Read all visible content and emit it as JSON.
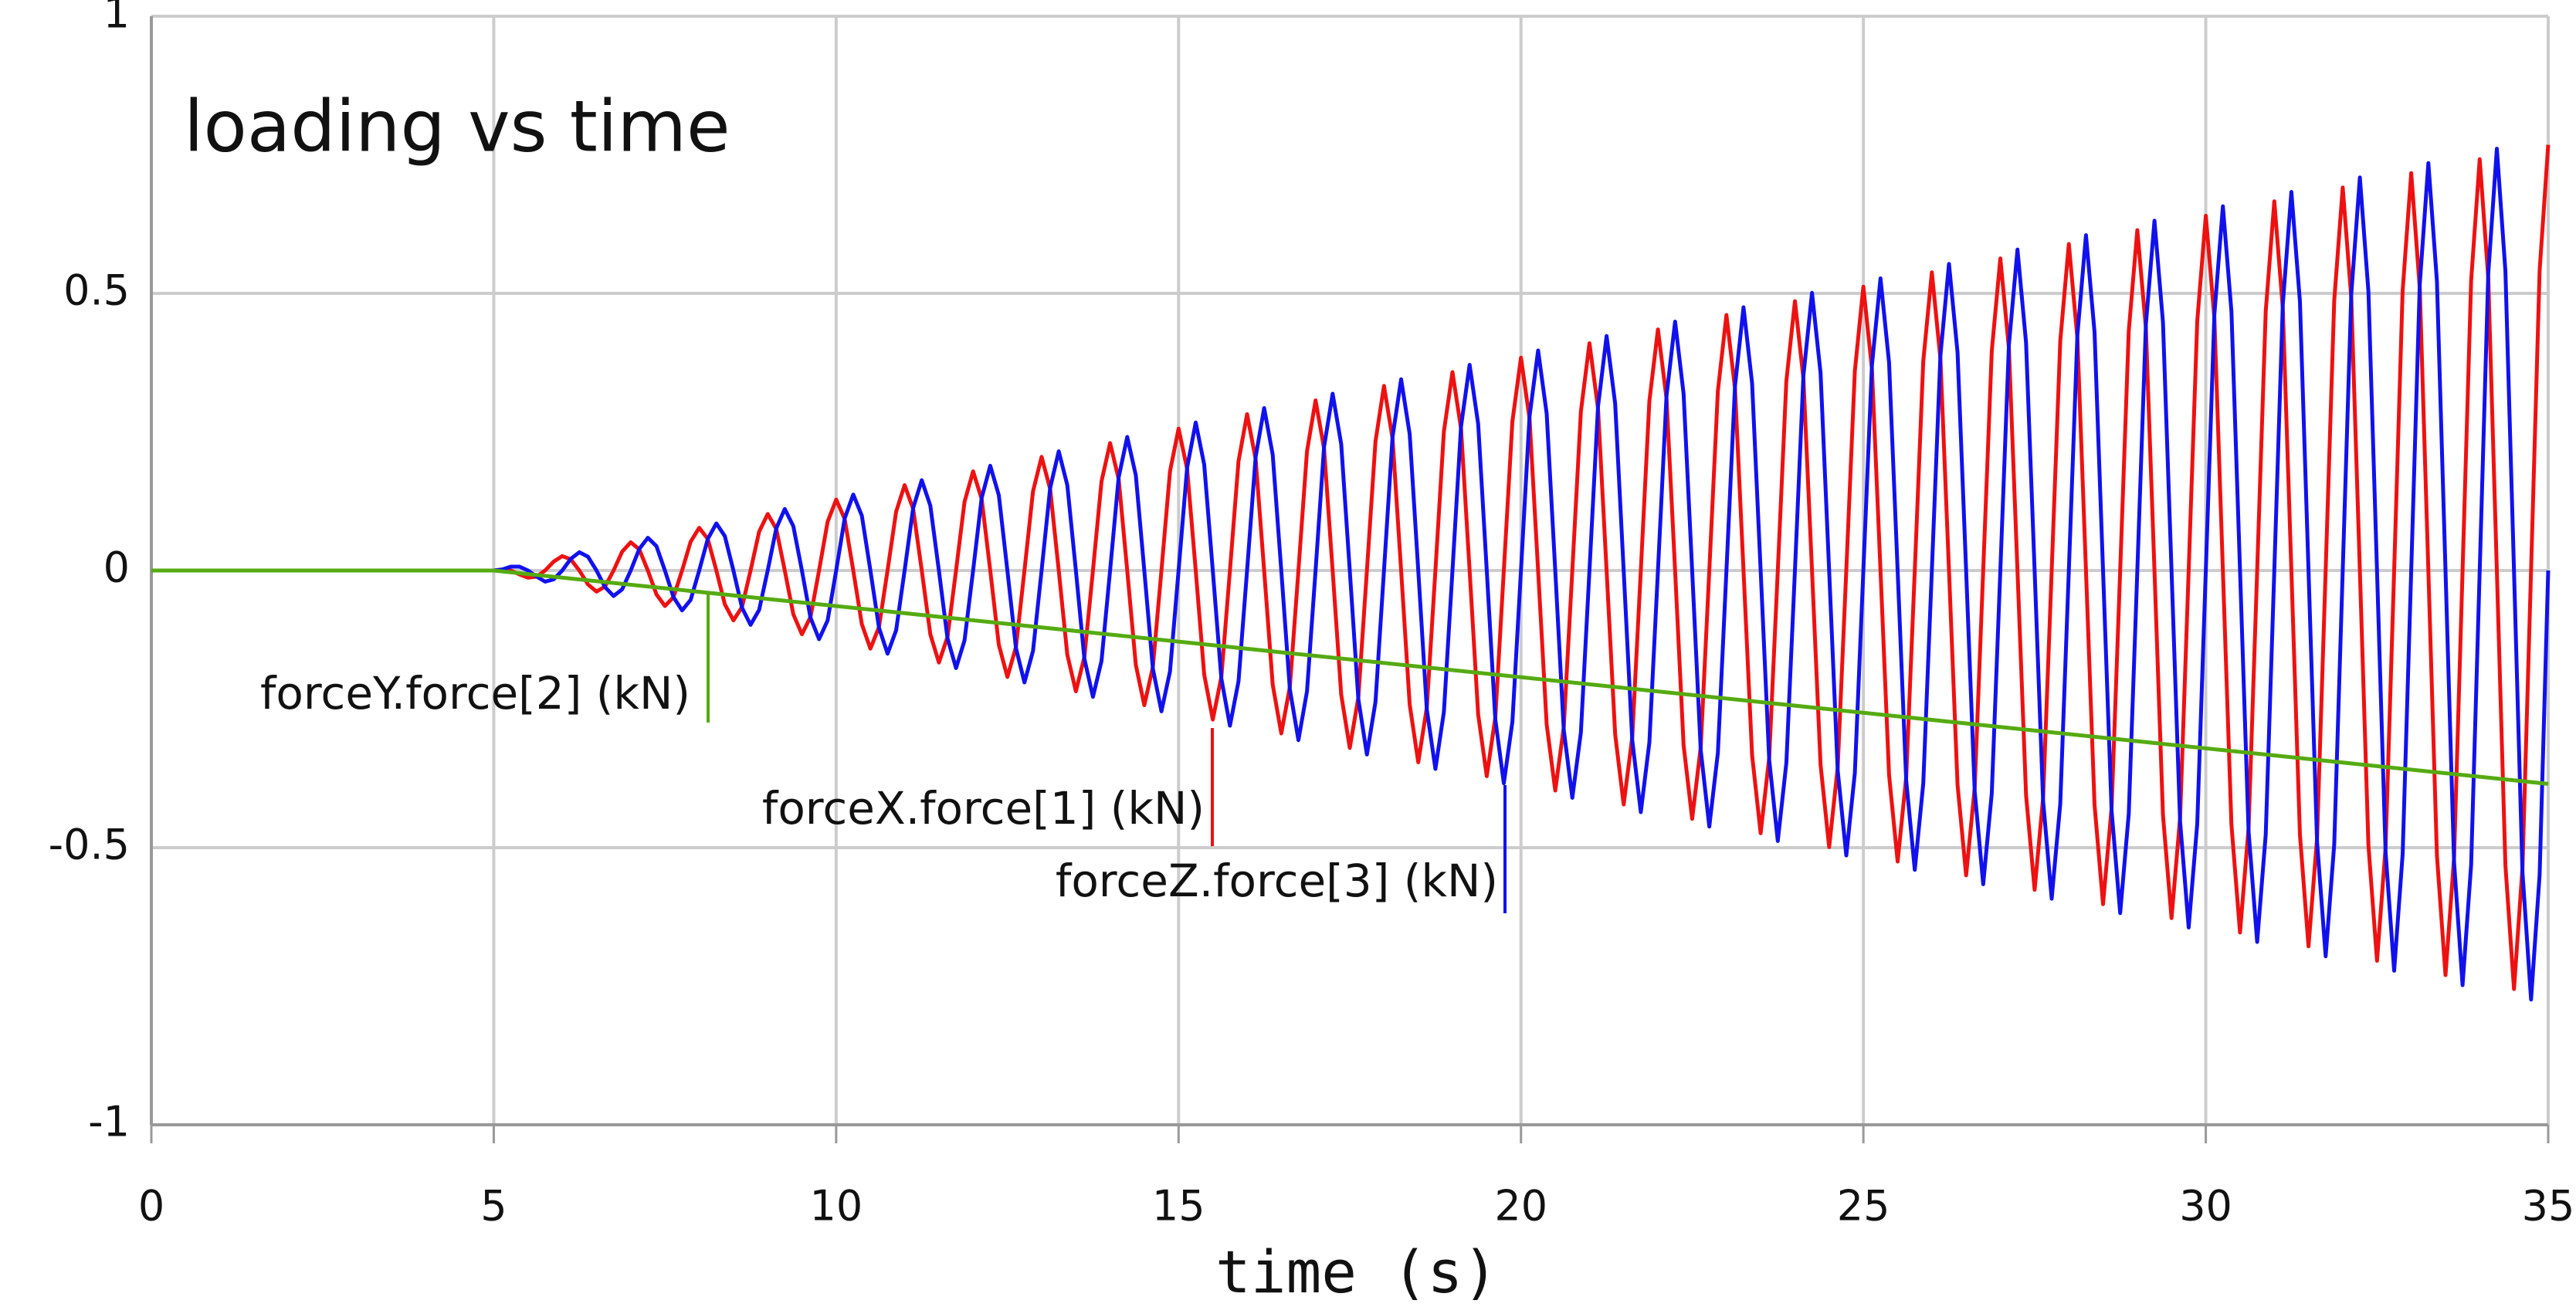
{
  "chart_data": {
    "type": "line",
    "title": "loading vs time",
    "xlabel": "time (s)",
    "xlim": [
      0,
      35
    ],
    "ylim": [
      -1,
      1
    ],
    "xticks": [
      0,
      5,
      10,
      15,
      20,
      25,
      30,
      35
    ],
    "yticks": [
      -1,
      -0.5,
      0,
      0.5,
      1
    ],
    "grid": true,
    "x": [
      0,
      5,
      5.125,
      5.25,
      5.375,
      5.5,
      5.625,
      5.75,
      5.875,
      6,
      6.125,
      6.25,
      6.375,
      6.5,
      6.625,
      6.75,
      6.875,
      7,
      7.125,
      7.25,
      7.375,
      7.5,
      7.625,
      7.75,
      7.875,
      8,
      8.125,
      8.25,
      8.375,
      8.5,
      8.625,
      8.75,
      8.875,
      9,
      9.125,
      9.25,
      9.375,
      9.5,
      9.625,
      9.75,
      9.875,
      10,
      10.125,
      10.25,
      10.375,
      10.5,
      10.625,
      10.75,
      10.875,
      11,
      11.125,
      11.25,
      11.375,
      11.5,
      11.625,
      11.75,
      11.875,
      12,
      12.125,
      12.25,
      12.375,
      12.5,
      12.625,
      12.75,
      12.875,
      13,
      13.125,
      13.25,
      13.375,
      13.5,
      13.625,
      13.75,
      13.875,
      14,
      14.125,
      14.25,
      14.375,
      14.5,
      14.625,
      14.75,
      14.875,
      15,
      15.125,
      15.25,
      15.375,
      15.5,
      15.625,
      15.75,
      15.875,
      16,
      16.125,
      16.25,
      16.375,
      16.5,
      16.625,
      16.75,
      16.875,
      17,
      17.125,
      17.25,
      17.375,
      17.5,
      17.625,
      17.75,
      17.875,
      18,
      18.125,
      18.25,
      18.375,
      18.5,
      18.625,
      18.75,
      18.875,
      19,
      19.125,
      19.25,
      19.375,
      19.5,
      19.625,
      19.75,
      19.875,
      20,
      20.125,
      20.25,
      20.375,
      20.5,
      20.625,
      20.75,
      20.875,
      21,
      21.125,
      21.25,
      21.375,
      21.5,
      21.625,
      21.75,
      21.875,
      22,
      22.125,
      22.25,
      22.375,
      22.5,
      22.625,
      22.75,
      22.875,
      23,
      23.125,
      23.25,
      23.375,
      23.5,
      23.625,
      23.75,
      23.875,
      24,
      24.125,
      24.25,
      24.375,
      24.5,
      24.625,
      24.75,
      24.875,
      25,
      25.125,
      25.25,
      25.375,
      25.5,
      25.625,
      25.75,
      25.875,
      26,
      26.125,
      26.25,
      26.375,
      26.5,
      26.625,
      26.75,
      26.875,
      27,
      27.125,
      27.25,
      27.375,
      27.5,
      27.625,
      27.75,
      27.875,
      28,
      28.125,
      28.25,
      28.375,
      28.5,
      28.625,
      28.75,
      28.875,
      29,
      29.125,
      29.25,
      29.375,
      29.5,
      29.625,
      29.75,
      29.875,
      30,
      30.125,
      30.25,
      30.375,
      30.5,
      30.625,
      30.75,
      30.875,
      31,
      31.125,
      31.25,
      31.375,
      31.5,
      31.625,
      31.75,
      31.875,
      32,
      32.125,
      32.25,
      32.375,
      32.5,
      32.625,
      32.75,
      32.875,
      33,
      33.125,
      33.25,
      33.375,
      33.5,
      33.625,
      33.75,
      33.875,
      34,
      34.125,
      34.25,
      34.375,
      34.5,
      34.625,
      34.75,
      34.875,
      35
    ],
    "series": [
      {
        "name": "forceX.force[1] (kN)",
        "color": "#ee1111",
        "values": [
          0,
          0,
          0.002,
          0,
          -0.007,
          -0.013,
          -0.011,
          0,
          0.016,
          0.026,
          0.02,
          0,
          -0.025,
          -0.038,
          -0.029,
          0,
          0.034,
          0.051,
          0.038,
          0,
          -0.043,
          -0.064,
          -0.048,
          0,
          0.052,
          0.077,
          0.057,
          0,
          -0.061,
          -0.09,
          -0.066,
          0,
          0.07,
          0.102,
          0.075,
          0,
          -0.079,
          -0.115,
          -0.084,
          0,
          0.088,
          0.128,
          0.093,
          0,
          -0.097,
          -0.141,
          -0.102,
          0,
          0.106,
          0.154,
          0.111,
          0,
          -0.115,
          -0.166,
          -0.12,
          0,
          0.124,
          0.179,
          0.129,
          0,
          -0.134,
          -0.192,
          -0.138,
          0,
          0.143,
          0.205,
          0.147,
          0,
          -0.152,
          -0.218,
          -0.156,
          0,
          0.161,
          0.23,
          0.165,
          0,
          -0.17,
          -0.243,
          -0.174,
          0,
          0.179,
          0.256,
          0.183,
          0,
          -0.188,
          -0.269,
          -0.192,
          0,
          0.197,
          0.282,
          0.201,
          0,
          -0.206,
          -0.294,
          -0.21,
          0,
          0.215,
          0.307,
          0.22,
          0,
          -0.224,
          -0.32,
          -0.229,
          0,
          0.233,
          0.333,
          0.238,
          0,
          -0.242,
          -0.346,
          -0.247,
          0,
          0.251,
          0.358,
          0.256,
          0,
          -0.26,
          -0.371,
          -0.265,
          0,
          0.269,
          0.384,
          0.274,
          0,
          -0.278,
          -0.397,
          -0.283,
          0,
          0.287,
          0.41,
          0.292,
          0,
          -0.296,
          -0.422,
          -0.301,
          0,
          0.306,
          0.435,
          0.31,
          0,
          -0.315,
          -0.448,
          -0.319,
          0,
          0.324,
          0.461,
          0.328,
          0,
          -0.333,
          -0.474,
          -0.337,
          0,
          0.342,
          0.486,
          0.346,
          0,
          -0.351,
          -0.499,
          -0.355,
          0,
          0.36,
          0.512,
          0.364,
          0,
          -0.369,
          -0.525,
          -0.373,
          0,
          0.378,
          0.538,
          0.382,
          0,
          -0.387,
          -0.55,
          -0.392,
          0,
          0.396,
          0.563,
          0.401,
          0,
          -0.405,
          -0.576,
          -0.41,
          0,
          0.414,
          0.589,
          0.419,
          0,
          -0.423,
          -0.602,
          -0.428,
          0,
          0.432,
          0.614,
          0.437,
          0,
          -0.441,
          -0.627,
          -0.446,
          0,
          0.45,
          0.64,
          0.455,
          0,
          -0.459,
          -0.653,
          -0.464,
          0,
          0.468,
          0.666,
          0.473,
          0,
          -0.477,
          -0.678,
          -0.482,
          0,
          0.487,
          0.691,
          0.491,
          0,
          -0.496,
          -0.704,
          -0.5,
          0,
          0.505,
          0.717,
          0.509,
          0,
          -0.514,
          -0.73,
          -0.518,
          0,
          0.523,
          0.742,
          0.527,
          0,
          -0.532,
          -0.755,
          -0.536,
          0,
          0.541,
          0.768
        ]
      },
      {
        "name": "forceZ.force[3] (kN)",
        "color": "#1111ee",
        "values": [
          0,
          0,
          0.002,
          0.007,
          0.007,
          0,
          -0.011,
          -0.02,
          -0.016,
          0,
          0.021,
          0.033,
          0.025,
          0,
          -0.03,
          -0.046,
          -0.034,
          0,
          0.039,
          0.059,
          0.044,
          0,
          -0.048,
          -0.072,
          -0.053,
          0,
          0.057,
          0.085,
          0.062,
          0,
          -0.067,
          -0.098,
          -0.071,
          0,
          0.076,
          0.111,
          0.08,
          0,
          -0.085,
          -0.124,
          -0.09,
          0,
          0.094,
          0.137,
          0.099,
          0,
          -0.103,
          -0.15,
          -0.108,
          0,
          0.113,
          0.163,
          0.117,
          0,
          -0.122,
          -0.176,
          -0.126,
          0,
          0.131,
          0.189,
          0.136,
          0,
          -0.14,
          -0.202,
          -0.145,
          0,
          0.149,
          0.215,
          0.154,
          0,
          -0.159,
          -0.228,
          -0.163,
          0,
          0.168,
          0.241,
          0.172,
          0,
          -0.177,
          -0.254,
          -0.182,
          0,
          0.186,
          0.267,
          0.191,
          0,
          -0.195,
          -0.28,
          -0.2,
          0,
          0.205,
          0.293,
          0.209,
          0,
          -0.214,
          -0.306,
          -0.218,
          0,
          0.223,
          0.319,
          0.228,
          0,
          -0.232,
          -0.332,
          -0.237,
          0,
          0.241,
          0.345,
          0.246,
          0,
          -0.251,
          -0.358,
          -0.255,
          0,
          0.26,
          0.371,
          0.264,
          0,
          -0.269,
          -0.384,
          -0.273,
          0,
          0.278,
          0.397,
          0.283,
          0,
          -0.287,
          -0.41,
          -0.292,
          0,
          0.296,
          0.423,
          0.301,
          0,
          -0.306,
          -0.436,
          -0.31,
          0,
          0.315,
          0.449,
          0.319,
          0,
          -0.324,
          -0.462,
          -0.329,
          0,
          0.333,
          0.475,
          0.338,
          0,
          -0.342,
          -0.488,
          -0.347,
          0,
          0.352,
          0.501,
          0.356,
          0,
          -0.361,
          -0.514,
          -0.365,
          0,
          0.37,
          0.527,
          0.375,
          0,
          -0.379,
          -0.54,
          -0.384,
          0,
          0.388,
          0.553,
          0.393,
          0,
          -0.398,
          -0.566,
          -0.402,
          0,
          0.407,
          0.579,
          0.411,
          0,
          -0.416,
          -0.592,
          -0.421,
          0,
          0.425,
          0.605,
          0.43,
          0,
          -0.434,
          -0.618,
          -0.439,
          0,
          0.444,
          0.631,
          0.448,
          0,
          -0.453,
          -0.644,
          -0.457,
          0,
          0.462,
          0.657,
          0.467,
          0,
          -0.471,
          -0.67,
          -0.476,
          0,
          0.48,
          0.683,
          0.485,
          0,
          -0.49,
          -0.696,
          -0.494,
          0,
          0.499,
          0.709,
          0.503,
          0,
          -0.508,
          -0.722,
          -0.512,
          0,
          0.517,
          0.735,
          0.522,
          0,
          -0.526,
          -0.748,
          -0.531,
          0,
          0.536,
          0.761,
          0.54,
          0,
          -0.545,
          -0.774,
          -0.549,
          0
        ]
      },
      {
        "name": "forceY.force[2] (kN)",
        "color": "#55aa11",
        "x": [
          0,
          5,
          35
        ],
        "values": [
          0,
          0,
          -0.385
        ]
      }
    ]
  }
}
